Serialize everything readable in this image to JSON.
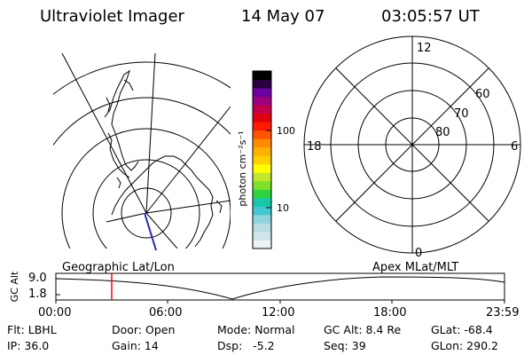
{
  "header": {
    "instrument": "Ultraviolet Imager",
    "date": "14 May 07",
    "time": "03:05:57 UT"
  },
  "colorbar": {
    "unit_label": "photon cm⁻²s⁻¹",
    "tick_100": "100",
    "tick_10": "10",
    "colors": [
      "#eaf4f6",
      "#cfe7ea",
      "#b8dde2",
      "#8fd4dc",
      "#41c7d0",
      "#16c8a8",
      "#2ed33e",
      "#7ee02a",
      "#bfe82b",
      "#ffff00",
      "#ffd000",
      "#ffb000",
      "#ff8c00",
      "#ff5500",
      "#ff1a00",
      "#e00010",
      "#c4004a",
      "#9a0080",
      "#6a00a0",
      "#2a0040",
      "#000000"
    ]
  },
  "polar": {
    "label_top": "12",
    "label_bottom": "0",
    "label_left": "18",
    "label_right": "6",
    "ring_60": "60",
    "ring_70": "70",
    "ring_80": "80"
  },
  "strip": {
    "left_label": "Geographic Lat/Lon",
    "right_label": "Apex MLat/MLT",
    "axis_title": "GC Alt",
    "y_top": "9.0",
    "y_bottom": "1.8",
    "x_ticks": [
      "00:00",
      "06:00",
      "12:00",
      "18:00",
      "23:59"
    ],
    "marker_color": "#ff0000"
  },
  "status": {
    "flt": "Flt: LBHL",
    "ip": "IP: 36.0",
    "door": "Door: Open",
    "gain": "Gain: 14",
    "mode": "Mode: Normal",
    "dsp": "Dsp:   -5.2",
    "gcalt": "GC Alt: 8.4 Re",
    "seq": "Seq: 39",
    "glat": "GLat: -68.4",
    "glon": "GLon: 290.2"
  }
}
